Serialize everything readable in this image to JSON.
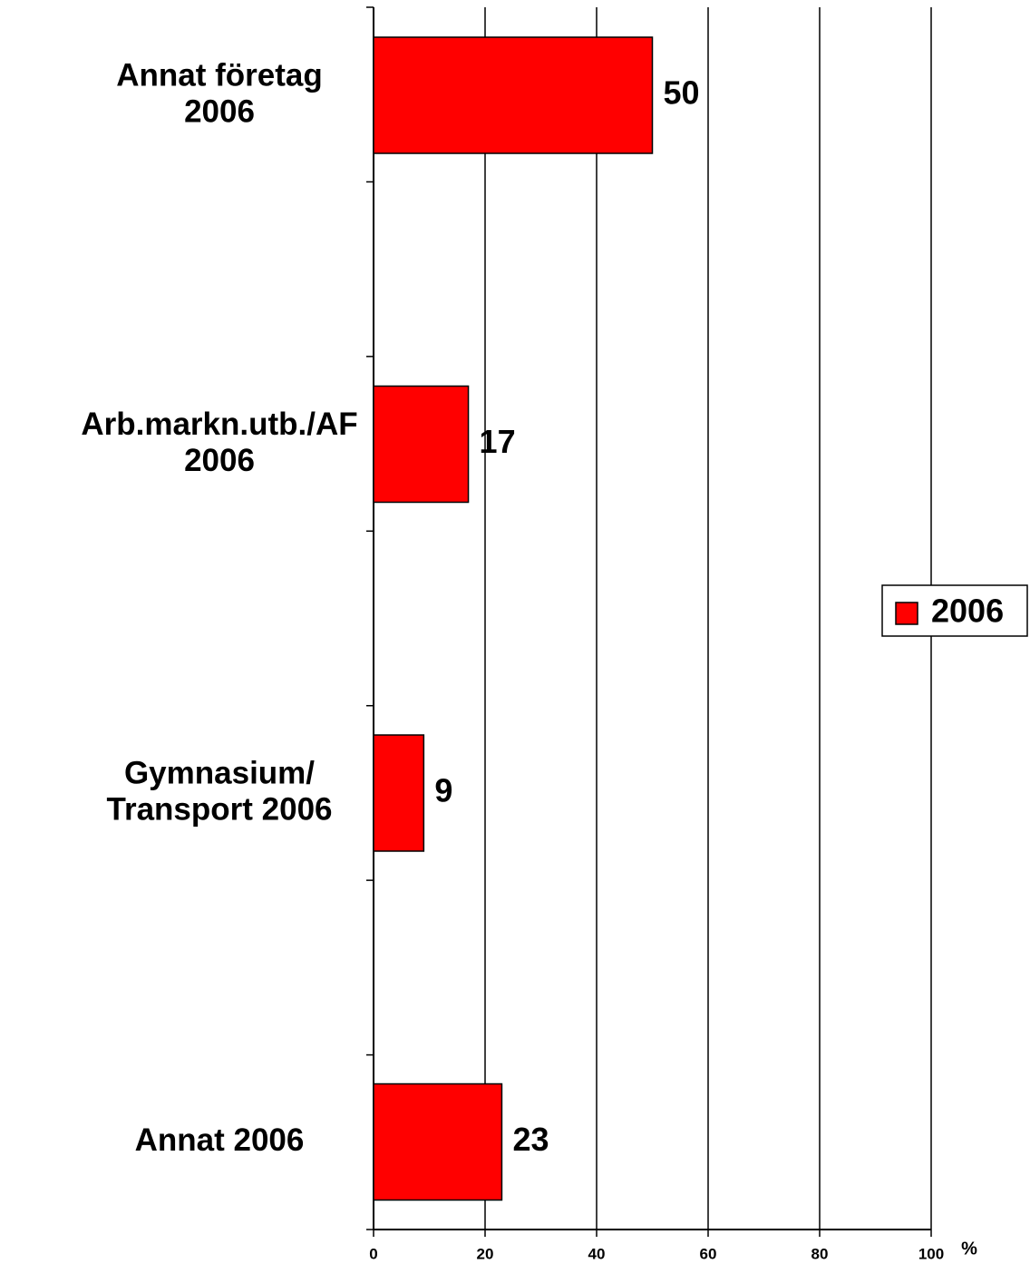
{
  "chart_data": {
    "type": "barh",
    "categories": [
      [
        "Annat företag",
        "2006"
      ],
      [
        "Arb.markn.utb./AF",
        "2006"
      ],
      [
        "Gymnasium/",
        "Transport 2006"
      ],
      [
        "Annat 2006"
      ]
    ],
    "series": [
      {
        "name": "2006",
        "color": "#ff0000",
        "values": [
          50,
          17,
          9,
          23
        ]
      }
    ],
    "xlim": [
      0,
      100
    ],
    "xticks": [
      0,
      20,
      40,
      60,
      80,
      100
    ],
    "xlabel": "%",
    "grid": true,
    "legend": "right"
  }
}
